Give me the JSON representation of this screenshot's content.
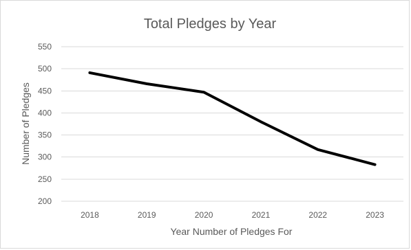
{
  "chart_data": {
    "type": "line",
    "title": "Total Pledges by Year",
    "xlabel": "Year Number of Pledges For",
    "ylabel": "Number of Pledges",
    "categories": [
      "2018",
      "2019",
      "2020",
      "2021",
      "2022",
      "2023"
    ],
    "series": [
      {
        "values": [
          491,
          466,
          447,
          380,
          317,
          283
        ],
        "color": "#000000"
      }
    ],
    "ylim": [
      200,
      550
    ],
    "yticks": [
      200,
      250,
      300,
      350,
      400,
      450,
      500,
      550
    ],
    "grid": true,
    "legend": "none"
  }
}
